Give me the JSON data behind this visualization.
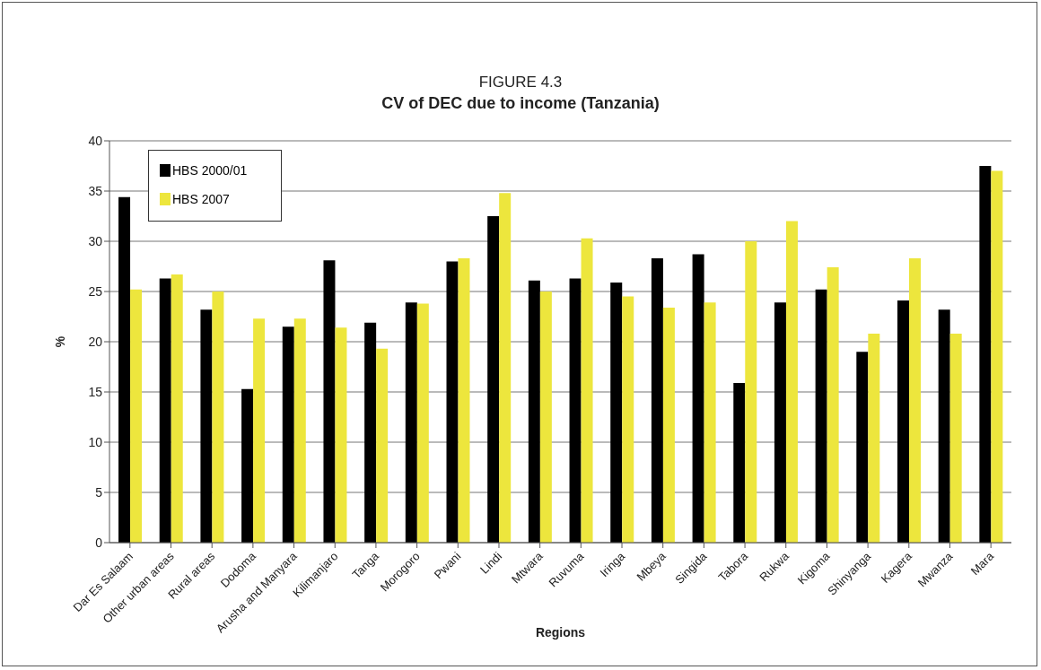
{
  "chart_data": {
    "type": "bar",
    "title": "FIGURE 4.3",
    "subtitle": "CV of DEC due to income (Tanzania)",
    "xlabel": "Regions",
    "ylabel": "%",
    "categories": [
      "Dar Es Salaam",
      "Other urban areas",
      "Rural areas",
      "Dodoma",
      "Arusha and Manyara",
      "Kilimanjaro",
      "Tanga",
      "Morogoro",
      "Pwani",
      "Lindi",
      "Mtwara",
      "Ruvuma",
      "Iringa",
      "Mbeya",
      "Singida",
      "Tabora",
      "Rukwa",
      "Kigoma",
      "Shinyanga",
      "Kagera",
      "Mwanza",
      "Mara"
    ],
    "series": [
      {
        "name": "HBS 2000/01",
        "color": "#000000",
        "values": [
          34.4,
          26.3,
          23.2,
          15.3,
          21.5,
          28.1,
          21.9,
          23.9,
          28.0,
          32.5,
          26.1,
          26.3,
          25.9,
          28.3,
          28.7,
          15.9,
          23.9,
          25.2,
          19.0,
          24.1,
          23.2,
          37.5
        ]
      },
      {
        "name": "HBS 2007",
        "color": "#ede63d",
        "values": [
          25.2,
          26.7,
          25.0,
          22.3,
          22.3,
          21.4,
          19.3,
          23.8,
          28.3,
          34.8,
          25.0,
          30.3,
          24.5,
          23.4,
          23.9,
          30.0,
          32.0,
          27.4,
          20.8,
          28.3,
          20.8,
          37.0
        ]
      }
    ],
    "ylim": [
      0,
      40
    ],
    "yticks": [
      0,
      5,
      10,
      15,
      20,
      25,
      30,
      35,
      40
    ],
    "grid": "y",
    "legend": "top left"
  }
}
